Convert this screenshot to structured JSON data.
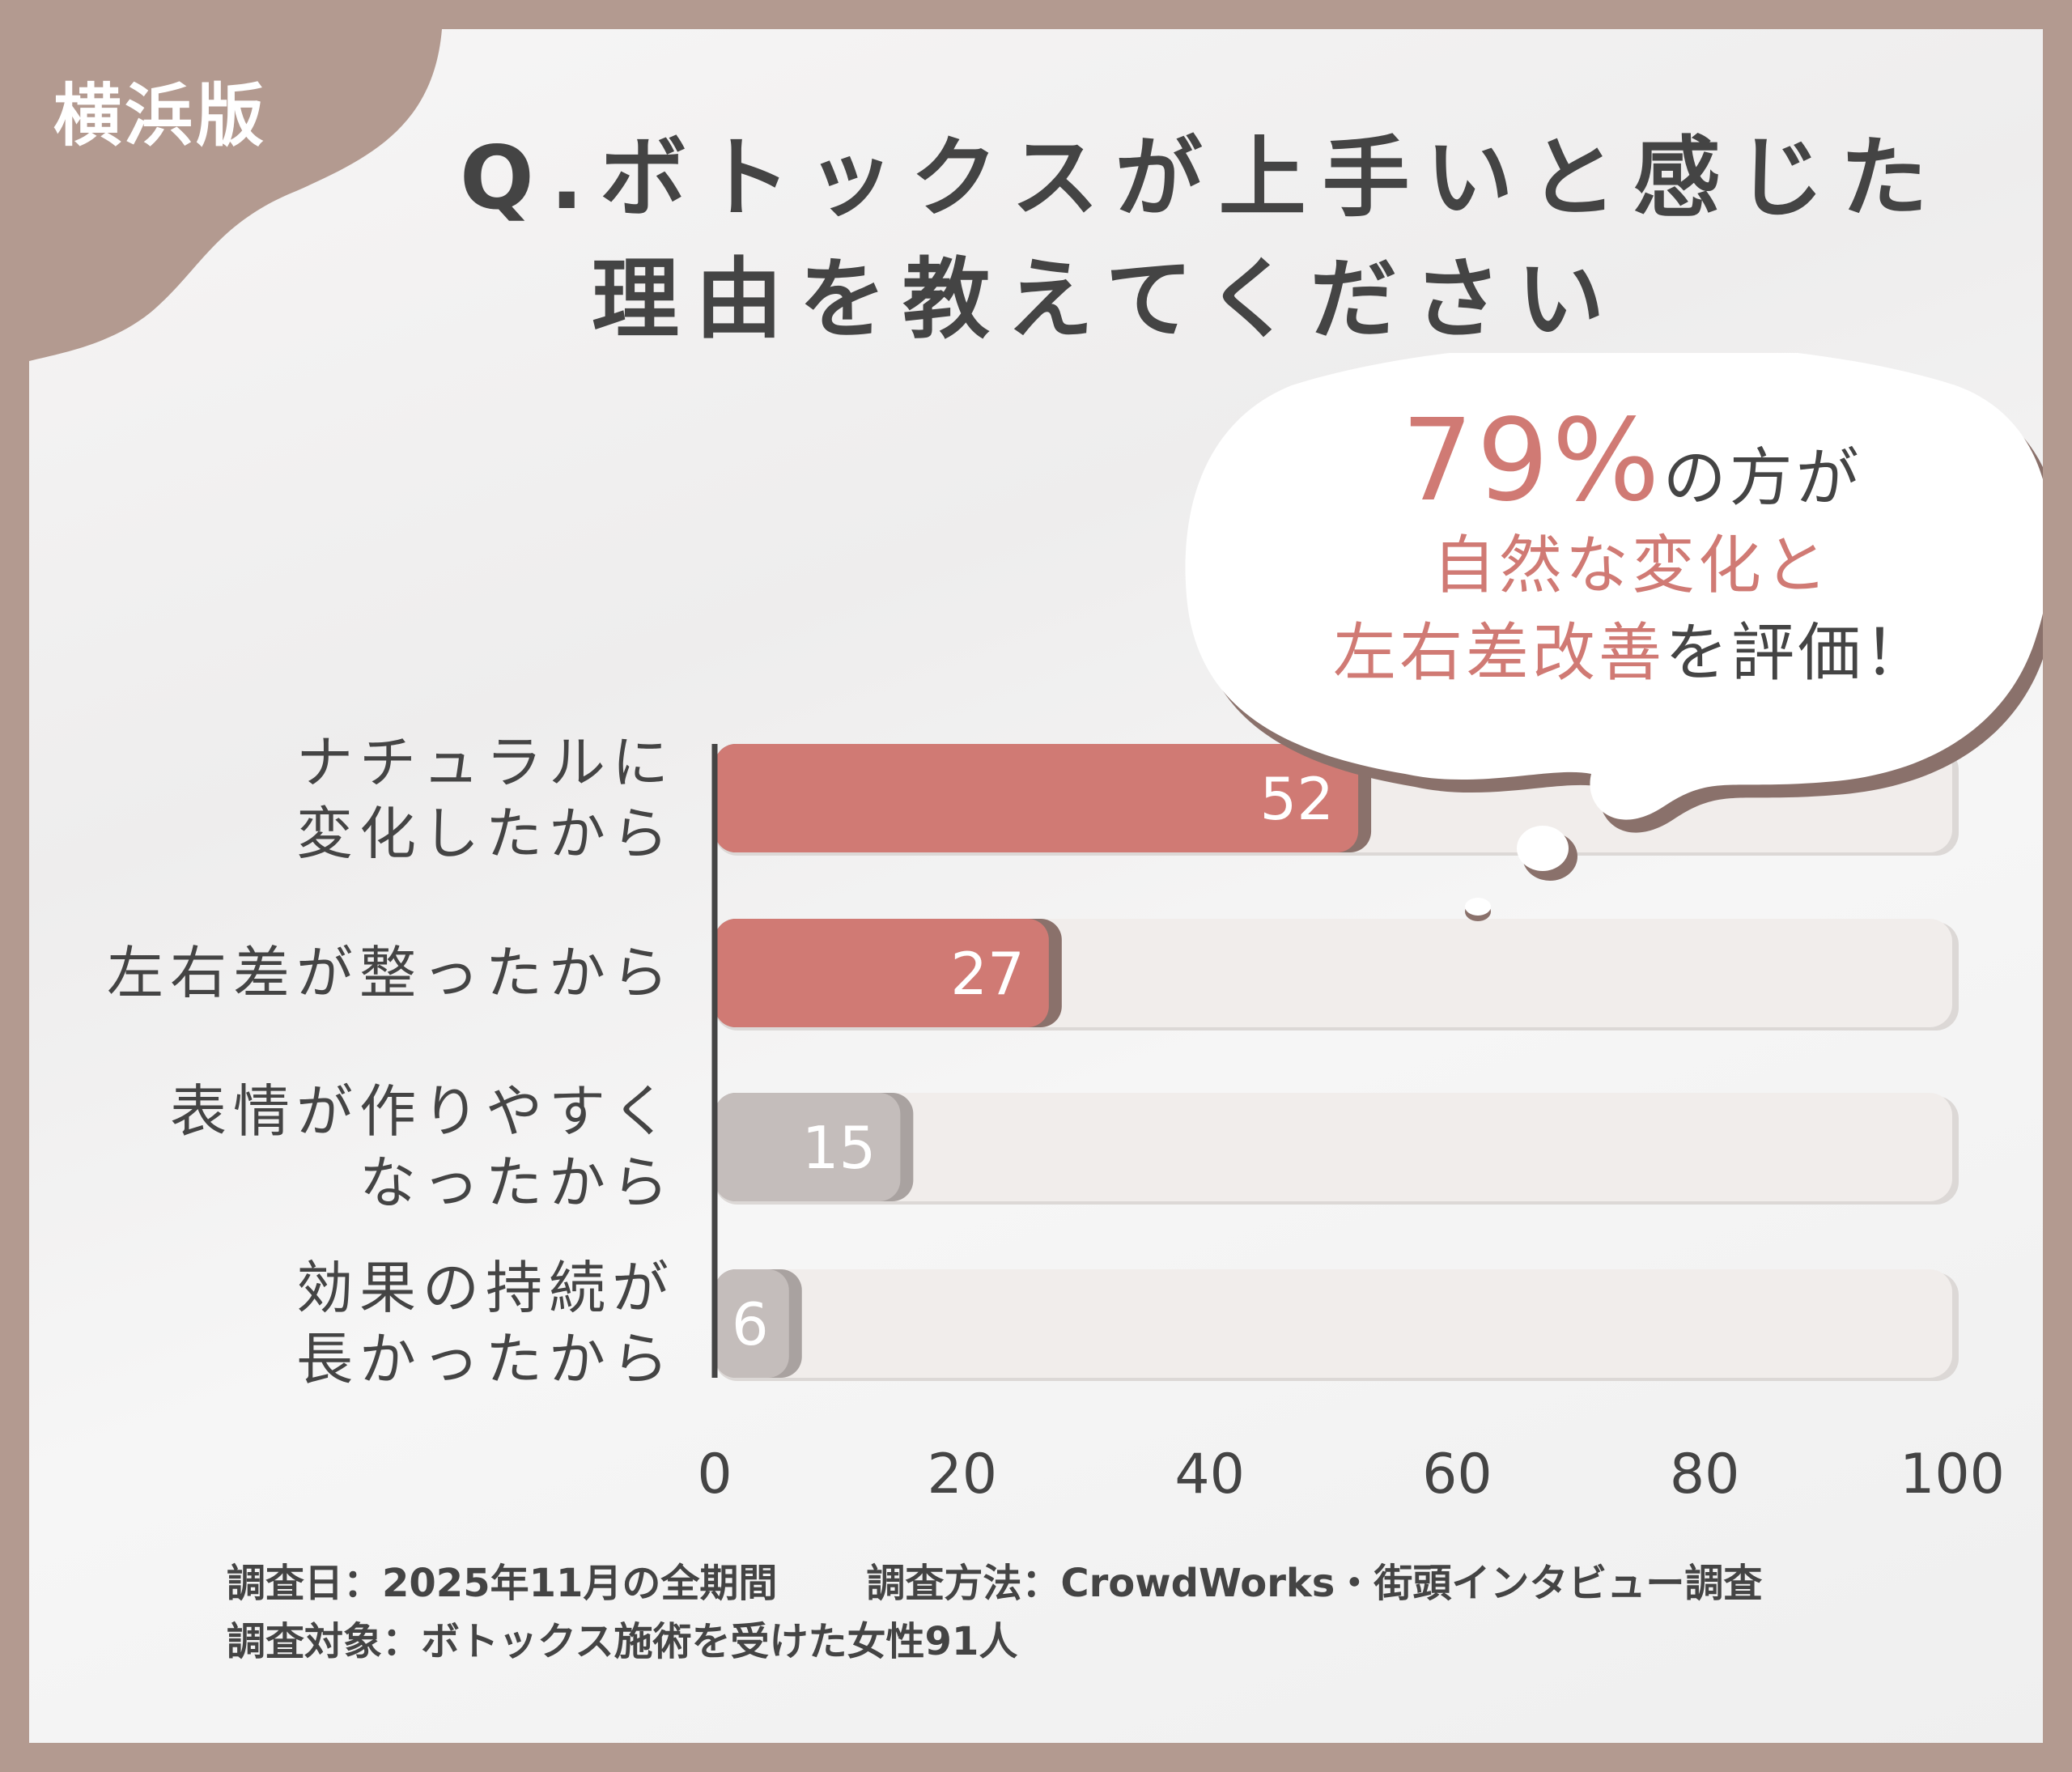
{
  "tag": "横浜版",
  "title": {
    "line1": "Q.ボトックスが上手いと感じた",
    "line2": "理由を教えてください"
  },
  "callout": {
    "percent": "79%",
    "line1_rest": "の方が",
    "line2": "自然な変化と",
    "line3_red": "左右差改善",
    "line3_rest": "を評価！"
  },
  "chart_data": {
    "type": "bar",
    "orientation": "horizontal",
    "categories": [
      [
        "ナチュラルに",
        "変化したから"
      ],
      [
        "左右差が整ったから"
      ],
      [
        "表情が作りやすく",
        "なったから"
      ],
      [
        "効果の持続が",
        "長かったから"
      ]
    ],
    "values": [
      52,
      27,
      15,
      6
    ],
    "xlim": [
      0,
      100
    ],
    "xticks": [
      "0",
      "20",
      "40",
      "60",
      "80",
      "100"
    ],
    "colors": {
      "highlight": "#d07a74",
      "muted": "#c4bdbb",
      "track": "#f1edeb",
      "shadow": "#8a716b"
    },
    "highlighted": [
      true,
      true,
      false,
      false
    ]
  },
  "footer": {
    "line1a": "調査日：2025年11月の全期間",
    "line1b": "調査方法：CrowdWorks・街頭インタビュー調査",
    "line2": "調査対象：ボトックス施術を受けた女性91人"
  }
}
